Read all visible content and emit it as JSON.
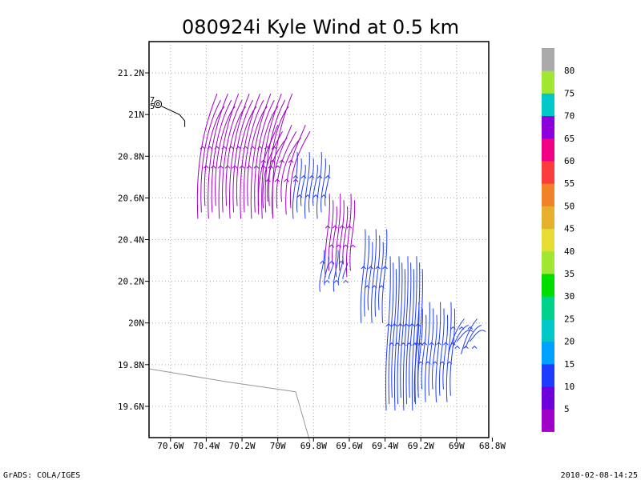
{
  "chart_data": {
    "type": "streamline",
    "title": "080924i Kyle Wind at 0.5 km",
    "lon_range": [
      -70.72,
      -68.82
    ],
    "lat_range": [
      19.45,
      21.35
    ],
    "x_ticks": [
      "70.6W",
      "70.4W",
      "70.2W",
      "70W",
      "69.8W",
      "69.6W",
      "69.4W",
      "69.2W",
      "69W",
      "68.8W"
    ],
    "x_tick_values": [
      -70.6,
      -70.4,
      -70.2,
      -70.0,
      -69.8,
      -69.6,
      -69.4,
      -69.2,
      -69.0,
      -68.8
    ],
    "y_ticks": [
      "19.6N",
      "19.8N",
      "20N",
      "20.2N",
      "20.4N",
      "20.6N",
      "20.8N",
      "21N",
      "21.2N"
    ],
    "y_tick_values": [
      19.6,
      19.8,
      20.0,
      20.2,
      20.4,
      20.6,
      20.8,
      21.0,
      21.2
    ],
    "grid": true,
    "colorbar": {
      "labels": [
        "5",
        "10",
        "15",
        "20",
        "25",
        "30",
        "35",
        "40",
        "45",
        "50",
        "55",
        "60",
        "65",
        "70",
        "75",
        "80"
      ],
      "colors": [
        "#a000c8",
        "#6e00dc",
        "#1e3cff",
        "#00a0ff",
        "#00c8c8",
        "#00d28c",
        "#00dc00",
        "#a0e632",
        "#e6dc32",
        "#e6af2d",
        "#f08228",
        "#fa3c3c",
        "#f00082",
        "#8c00dc",
        "#00c8c8",
        "#a0e632",
        "#aaaaaa"
      ]
    },
    "track_labels": [
      "7",
      "5"
    ],
    "coast_line": [
      [
        -70.72,
        19.78
      ],
      [
        -70.3,
        19.72
      ],
      [
        -69.9,
        19.67
      ],
      [
        -69.82,
        19.43
      ]
    ],
    "track_line": [
      [
        -70.65,
        21.04
      ],
      [
        -70.55,
        21.0
      ],
      [
        -70.52,
        20.97
      ],
      [
        -70.52,
        20.94
      ]
    ],
    "storm_center": [
      -70.67,
      21.05
    ],
    "streamline_fields": [
      {
        "color": "#a000c8",
        "lon": [
          -70.42,
          -70.0
        ],
        "lat": [
          20.5,
          21.1
        ],
        "n": 22,
        "dir": "sw"
      },
      {
        "color": "#a000c8",
        "lon": [
          -70.08,
          -69.9
        ],
        "lat": [
          20.52,
          20.95
        ],
        "n": 8,
        "dir": "sw"
      },
      {
        "color": "#1e3cff",
        "lon": [
          -69.9,
          -69.72
        ],
        "lat": [
          20.5,
          20.82
        ],
        "n": 9,
        "dir": "n"
      },
      {
        "color": "#a000c8",
        "lon": [
          -69.72,
          -69.58
        ],
        "lat": [
          20.22,
          20.62
        ],
        "n": 8,
        "dir": "n"
      },
      {
        "color": "#1e3cff",
        "lon": [
          -69.75,
          -69.62
        ],
        "lat": [
          20.15,
          20.35
        ],
        "n": 6,
        "dir": "n"
      },
      {
        "color": "#1e3cff",
        "lon": [
          -69.52,
          -69.4
        ],
        "lat": [
          20.0,
          20.45
        ],
        "n": 7,
        "dir": "n"
      },
      {
        "color": "#1e3cff",
        "lon": [
          -69.38,
          -69.2
        ],
        "lat": [
          19.58,
          20.32
        ],
        "n": 12,
        "dir": "n"
      },
      {
        "color": "#1e3cff",
        "lon": [
          -69.22,
          -69.02
        ],
        "lat": [
          19.62,
          20.1
        ],
        "n": 11,
        "dir": "n"
      },
      {
        "color": "#1e3cff",
        "lon": [
          -69.02,
          -68.9
        ],
        "lat": [
          19.85,
          20.02
        ],
        "n": 6,
        "dir": "ne"
      }
    ],
    "footer_left": "GrADS: COLA/IGES",
    "footer_right": "2010-02-08-14:25"
  }
}
